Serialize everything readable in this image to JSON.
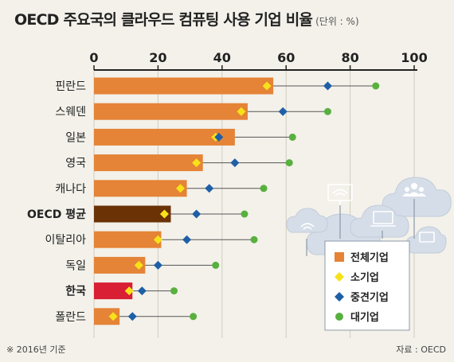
{
  "chart_data": {
    "type": "bar",
    "title": "OECD 주요국의 클라우드 컴퓨팅 사용 기업 비율",
    "unit": "(단위 : %)",
    "xlim": [
      0,
      100
    ],
    "ticks": [
      "0",
      "20",
      "40",
      "60",
      "80",
      "100"
    ],
    "tick_values": [
      0,
      20,
      40,
      60,
      80,
      100
    ],
    "categories": [
      "핀란드",
      "스웨덴",
      "일본",
      "영국",
      "캐나다",
      "OECD 평균",
      "이탈리아",
      "독일",
      "한국",
      "폴란드"
    ],
    "highlight": {
      "OECD 평균": "#6b3206",
      "한국": "#d81f33"
    },
    "series": [
      {
        "name": "전체기업",
        "mark": "bar",
        "color": "#e58336",
        "values": [
          56,
          48,
          44,
          34,
          29,
          24,
          21,
          16,
          12,
          8
        ]
      },
      {
        "name": "소기업",
        "mark": "diamond",
        "color": "#f7e21a",
        "values": [
          54,
          46,
          38,
          32,
          27,
          22,
          20,
          14,
          11,
          6
        ]
      },
      {
        "name": "중견기업",
        "mark": "diamond",
        "color": "#1f5fa6",
        "values": [
          73,
          59,
          39,
          44,
          36,
          32,
          29,
          20,
          15,
          12
        ]
      },
      {
        "name": "대기업",
        "mark": "dot",
        "color": "#58b03e",
        "values": [
          88,
          73,
          62,
          61,
          53,
          47,
          50,
          38,
          25,
          31
        ]
      }
    ],
    "legend_position": "bottom-right",
    "grid": true
  },
  "footnote": "※ 2016년 기준",
  "source": "자료 : OECD"
}
